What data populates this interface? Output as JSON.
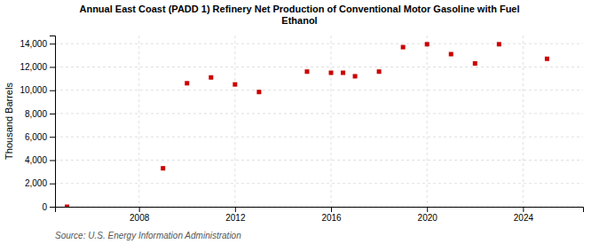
{
  "chart_data": {
    "type": "scatter",
    "title": "Annual East Coast (PADD 1) Refinery Net Production of Conventional Motor Gasoline with Fuel\nEthanol",
    "ylabel": "Thousand Barrels",
    "source": "Source: U.S. Energy Information Administration",
    "x": [
      2005,
      2009,
      2010,
      2011,
      2012,
      2013,
      2015,
      2016,
      2016.5,
      2017,
      2018,
      2019,
      2020,
      2021,
      2022,
      2023,
      2025
    ],
    "values": [
      0,
      3300,
      10600,
      11100,
      10500,
      9850,
      11600,
      11500,
      11500,
      11200,
      11600,
      13700,
      13950,
      13100,
      12300,
      13950,
      12700
    ],
    "color": "#cc0000",
    "marker": "square",
    "xlim": [
      2004.5,
      2026.5
    ],
    "ylim": [
      0,
      14700
    ],
    "xticks": [
      2008,
      2012,
      2016,
      2020,
      2024
    ],
    "yticks": [
      0,
      {
        "value": 2000,
        "label": "2,000"
      },
      {
        "value": 4000,
        "label": "4,000"
      },
      {
        "value": 6000,
        "label": "6,000"
      },
      {
        "value": 8000,
        "label": "8,000"
      },
      {
        "value": 10000,
        "label": "10,000"
      },
      {
        "value": 12000,
        "label": "12,000"
      },
      {
        "value": 14000,
        "label": "14,000"
      }
    ],
    "grid": true
  }
}
